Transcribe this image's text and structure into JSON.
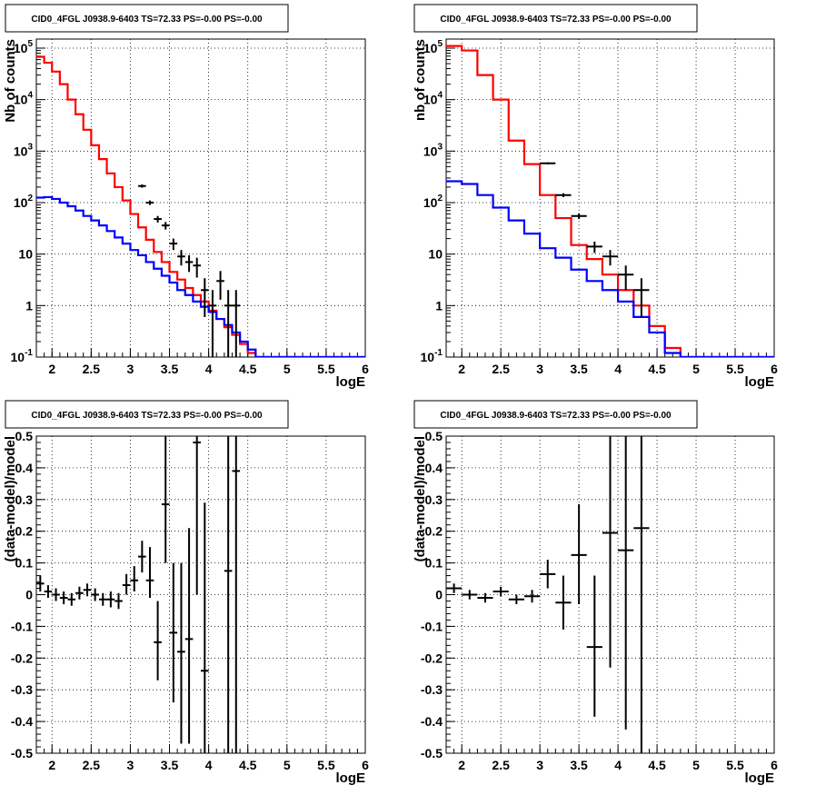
{
  "chart_data": [
    {
      "type": "line",
      "title": "CID0_4FGL J0938.9-6403 TS=72.33 PS=-0.00 PS=-0.00",
      "xlabel": "logE",
      "ylabel": "Nb of counts",
      "log_y": true,
      "xlim": [
        1.8,
        6.0
      ],
      "ylim": [
        0.1,
        150000
      ],
      "grid": true,
      "x_ticks": [
        "2",
        "2.5",
        "3",
        "3.5",
        "4",
        "4.5",
        "5",
        "5.5",
        "6"
      ],
      "y_ticks": [
        "10^-1",
        "1",
        "10",
        "10^2",
        "10^3",
        "10^4",
        "10^5"
      ],
      "bin_width": 0.1,
      "series": [
        {
          "kind": "histogram",
          "color": "#ff0000",
          "x_edges": [
            1.8,
            1.9,
            2.0,
            2.1,
            2.2,
            2.3,
            2.4,
            2.5,
            2.6,
            2.7,
            2.8,
            2.9,
            3.0,
            3.1,
            3.2,
            3.3,
            3.4,
            3.5,
            3.6,
            3.7,
            3.8,
            3.9,
            4.0,
            4.1,
            4.2,
            4.3,
            4.4,
            4.5,
            4.6,
            4.7,
            4.8,
            4.9,
            5.0,
            5.1,
            5.2,
            5.3,
            5.4,
            5.5,
            5.6,
            5.7,
            5.8,
            5.9,
            6.0
          ],
          "values": [
            68000,
            52000,
            35000,
            20000,
            10000,
            5200,
            2600,
            1300,
            700,
            370,
            200,
            110,
            60,
            33,
            19,
            11,
            7,
            4.5,
            3.2,
            2.2,
            1.6,
            1.2,
            0.8,
            0.55,
            0.38,
            0.27,
            0.18,
            0.12,
            0.1,
            0.1,
            0.1,
            0.1,
            0.1,
            0.1,
            0.1,
            0.1,
            0.1,
            0.1,
            0.1,
            0.1,
            0.1,
            0.1
          ]
        },
        {
          "kind": "histogram",
          "color": "#0000ff",
          "x_edges": [
            1.8,
            1.9,
            2.0,
            2.1,
            2.2,
            2.3,
            2.4,
            2.5,
            2.6,
            2.7,
            2.8,
            2.9,
            3.0,
            3.1,
            3.2,
            3.3,
            3.4,
            3.5,
            3.6,
            3.7,
            3.8,
            3.9,
            4.0,
            4.1,
            4.2,
            4.3,
            4.4,
            4.5,
            4.6,
            4.7,
            4.8,
            4.9,
            5.0,
            5.1,
            5.2,
            5.3,
            5.4,
            5.5,
            5.6,
            5.7,
            5.8,
            5.9,
            6.0
          ],
          "values": [
            125,
            128,
            118,
            100,
            85,
            70,
            55,
            45,
            36,
            28,
            21,
            16,
            12,
            9.5,
            7,
            5.2,
            3.8,
            2.8,
            2.0,
            1.6,
            1.2,
            0.95,
            0.75,
            0.55,
            0.42,
            0.3,
            0.2,
            0.14,
            0.1,
            0.1,
            0.1,
            0.1,
            0.1,
            0.1,
            0.1,
            0.1,
            0.1,
            0.1,
            0.1,
            0.1,
            0.1,
            0.1
          ]
        },
        {
          "kind": "data_points",
          "color": "#000000",
          "x_half_width": 0.05,
          "points": [
            {
              "x": 3.15,
              "y": 210,
              "lo": 195,
              "hi": 225
            },
            {
              "x": 3.25,
              "y": 100,
              "lo": 90,
              "hi": 110
            },
            {
              "x": 3.35,
              "y": 48,
              "lo": 41,
              "hi": 55
            },
            {
              "x": 3.45,
              "y": 36,
              "lo": 30,
              "hi": 42
            },
            {
              "x": 3.55,
              "y": 16,
              "lo": 12,
              "hi": 20
            },
            {
              "x": 3.65,
              "y": 9,
              "lo": 6,
              "hi": 12
            },
            {
              "x": 3.75,
              "y": 7,
              "lo": 4.5,
              "hi": 9.5
            },
            {
              "x": 3.85,
              "y": 6,
              "lo": 3.5,
              "hi": 8.5
            },
            {
              "x": 3.95,
              "y": 2,
              "lo": 0.6,
              "hi": 3.4
            },
            {
              "x": 4.05,
              "y": 1,
              "lo": 0.1,
              "hi": 2.0
            },
            {
              "x": 4.15,
              "y": 3,
              "lo": 1.3,
              "hi": 4.7
            },
            {
              "x": 4.25,
              "y": 1,
              "lo": 0.1,
              "hi": 2.0
            },
            {
              "x": 4.35,
              "y": 1,
              "lo": 0.1,
              "hi": 2.0
            }
          ]
        }
      ]
    },
    {
      "type": "line",
      "title": "CID0_4FGL J0938.9-6403 TS=72.33 PS=-0.00 PS=-0.00",
      "xlabel": "logE",
      "ylabel": "nb of counts",
      "log_y": true,
      "xlim": [
        1.8,
        6.0
      ],
      "ylim": [
        0.1,
        150000
      ],
      "grid": true,
      "x_ticks": [
        "2",
        "2.5",
        "3",
        "3.5",
        "4",
        "4.5",
        "5",
        "5.5",
        "6"
      ],
      "y_ticks": [
        "10^-1",
        "1",
        "10",
        "10^2",
        "10^3",
        "10^4",
        "10^5"
      ],
      "bin_width": 0.2,
      "series": [
        {
          "kind": "histogram",
          "color": "#ff0000",
          "x_edges": [
            1.8,
            2.0,
            2.2,
            2.4,
            2.6,
            2.8,
            3.0,
            3.2,
            3.4,
            3.6,
            3.8,
            4.0,
            4.2,
            4.4,
            4.6,
            4.8,
            5.0,
            5.2,
            5.4,
            5.6,
            5.8,
            6.0
          ],
          "values": [
            110000,
            90000,
            30000,
            10000,
            1600,
            560,
            140,
            50,
            15,
            8,
            4,
            2,
            1,
            0.4,
            0.15,
            0.1,
            0.1,
            0.1,
            0.1,
            0.1,
            0.1
          ]
        },
        {
          "kind": "histogram",
          "color": "#0000ff",
          "x_edges": [
            1.8,
            2.0,
            2.2,
            2.4,
            2.6,
            2.8,
            3.0,
            3.2,
            3.4,
            3.6,
            3.8,
            4.0,
            4.2,
            4.4,
            4.6,
            4.8,
            5.0,
            5.2,
            5.4,
            5.6,
            5.8,
            6.0
          ],
          "values": [
            260,
            230,
            140,
            80,
            45,
            25,
            13,
            8.5,
            5,
            3,
            2,
            1.2,
            0.6,
            0.3,
            0.12,
            0.1,
            0.1,
            0.1,
            0.1,
            0.1,
            0.1
          ]
        },
        {
          "kind": "data_points",
          "color": "#000000",
          "x_half_width": 0.1,
          "points": [
            {
              "x": 3.1,
              "y": 580,
              "lo": 555,
              "hi": 605
            },
            {
              "x": 3.3,
              "y": 140,
              "lo": 128,
              "hi": 152
            },
            {
              "x": 3.5,
              "y": 55,
              "lo": 48,
              "hi": 62
            },
            {
              "x": 3.7,
              "y": 14,
              "lo": 10.5,
              "hi": 17.5
            },
            {
              "x": 3.9,
              "y": 9,
              "lo": 6,
              "hi": 12
            },
            {
              "x": 4.1,
              "y": 4,
              "lo": 2,
              "hi": 6
            },
            {
              "x": 4.3,
              "y": 2,
              "lo": 0.6,
              "hi": 3.4
            }
          ]
        }
      ]
    },
    {
      "type": "scatter",
      "title": "CID0_4FGL J0938.9-6403 TS=72.33 PS=-0.00 PS=-0.00",
      "xlabel": "logE",
      "ylabel": "(data-model)/model",
      "xlim": [
        1.8,
        6.0
      ],
      "ylim": [
        -0.5,
        0.5
      ],
      "grid": true,
      "x_ticks": [
        "2",
        "2.5",
        "3",
        "3.5",
        "4",
        "4.5",
        "5",
        "5.5",
        "6"
      ],
      "y_ticks": [
        "-0.5",
        "-0.4",
        "-0.3",
        "-0.2",
        "-0.1",
        "0",
        "0.1",
        "0.2",
        "0.3",
        "0.4",
        "0.5"
      ],
      "x_half_width": 0.05,
      "points": [
        {
          "x": 1.85,
          "y": 0.035,
          "lo": 0.01,
          "hi": 0.06
        },
        {
          "x": 1.95,
          "y": 0.01,
          "lo": -0.01,
          "hi": 0.03
        },
        {
          "x": 2.05,
          "y": 0.0,
          "lo": -0.02,
          "hi": 0.02
        },
        {
          "x": 2.15,
          "y": -0.01,
          "lo": -0.03,
          "hi": 0.01
        },
        {
          "x": 2.25,
          "y": -0.015,
          "lo": -0.035,
          "hi": 0.005
        },
        {
          "x": 2.35,
          "y": 0.005,
          "lo": -0.015,
          "hi": 0.025
        },
        {
          "x": 2.45,
          "y": 0.015,
          "lo": -0.005,
          "hi": 0.035
        },
        {
          "x": 2.55,
          "y": 0.0,
          "lo": -0.02,
          "hi": 0.02
        },
        {
          "x": 2.65,
          "y": -0.015,
          "lo": -0.035,
          "hi": 0.005
        },
        {
          "x": 2.75,
          "y": -0.015,
          "lo": -0.04,
          "hi": 0.01
        },
        {
          "x": 2.85,
          "y": -0.02,
          "lo": -0.045,
          "hi": 0.005
        },
        {
          "x": 2.95,
          "y": 0.03,
          "lo": 0.0,
          "hi": 0.065
        },
        {
          "x": 3.05,
          "y": 0.045,
          "lo": 0.01,
          "hi": 0.09
        },
        {
          "x": 3.15,
          "y": 0.12,
          "lo": 0.07,
          "hi": 0.17
        },
        {
          "x": 3.25,
          "y": 0.045,
          "lo": -0.01,
          "hi": 0.15
        },
        {
          "x": 3.35,
          "y": -0.15,
          "lo": -0.27,
          "hi": -0.02
        },
        {
          "x": 3.45,
          "y": 0.285,
          "lo": 0.1,
          "hi": 0.5
        },
        {
          "x": 3.55,
          "y": -0.12,
          "lo": -0.34,
          "hi": 0.1
        },
        {
          "x": 3.65,
          "y": -0.18,
          "lo": -0.47,
          "hi": 0.1
        },
        {
          "x": 3.75,
          "y": -0.14,
          "lo": -0.47,
          "hi": 0.21
        },
        {
          "x": 3.85,
          "y": 0.48,
          "lo": 0.0,
          "hi": 0.5
        },
        {
          "x": 3.95,
          "y": -0.24,
          "lo": -0.5,
          "hi": 0.29
        },
        {
          "x": 4.25,
          "y": 0.075,
          "lo": -0.5,
          "hi": 0.5
        },
        {
          "x": 4.35,
          "y": 0.39,
          "lo": -0.5,
          "hi": 0.5
        }
      ]
    },
    {
      "type": "scatter",
      "title": "CID0_4FGL J0938.9-6403 TS=72.33 PS=-0.00 PS=-0.00",
      "xlabel": "logE",
      "ylabel": "(data-model)/model",
      "xlim": [
        1.8,
        6.0
      ],
      "ylim": [
        -0.5,
        0.5
      ],
      "grid": true,
      "x_ticks": [
        "2",
        "2.5",
        "3",
        "3.5",
        "4",
        "4.5",
        "5",
        "5.5",
        "6"
      ],
      "y_ticks": [
        "-0.5",
        "-0.4",
        "-0.3",
        "-0.2",
        "-0.1",
        "0",
        "0.1",
        "0.2",
        "0.3",
        "0.4",
        "0.5"
      ],
      "x_half_width": 0.1,
      "points": [
        {
          "x": 1.9,
          "y": 0.02,
          "lo": 0.005,
          "hi": 0.035
        },
        {
          "x": 2.1,
          "y": 0.0,
          "lo": -0.015,
          "hi": 0.015
        },
        {
          "x": 2.3,
          "y": -0.01,
          "lo": -0.025,
          "hi": 0.005
        },
        {
          "x": 2.5,
          "y": 0.01,
          "lo": -0.005,
          "hi": 0.025
        },
        {
          "x": 2.7,
          "y": -0.015,
          "lo": -0.03,
          "hi": 0.0
        },
        {
          "x": 2.9,
          "y": -0.005,
          "lo": -0.025,
          "hi": 0.015
        },
        {
          "x": 3.1,
          "y": 0.065,
          "lo": 0.02,
          "hi": 0.11
        },
        {
          "x": 3.3,
          "y": -0.025,
          "lo": -0.11,
          "hi": 0.06
        },
        {
          "x": 3.5,
          "y": 0.125,
          "lo": -0.03,
          "hi": 0.285
        },
        {
          "x": 3.7,
          "y": -0.165,
          "lo": -0.385,
          "hi": 0.06
        },
        {
          "x": 3.9,
          "y": 0.195,
          "lo": -0.23,
          "hi": 0.5
        },
        {
          "x": 4.1,
          "y": 0.14,
          "lo": -0.425,
          "hi": 0.5
        },
        {
          "x": 4.3,
          "y": 0.21,
          "lo": -0.5,
          "hi": 0.5
        }
      ]
    }
  ]
}
